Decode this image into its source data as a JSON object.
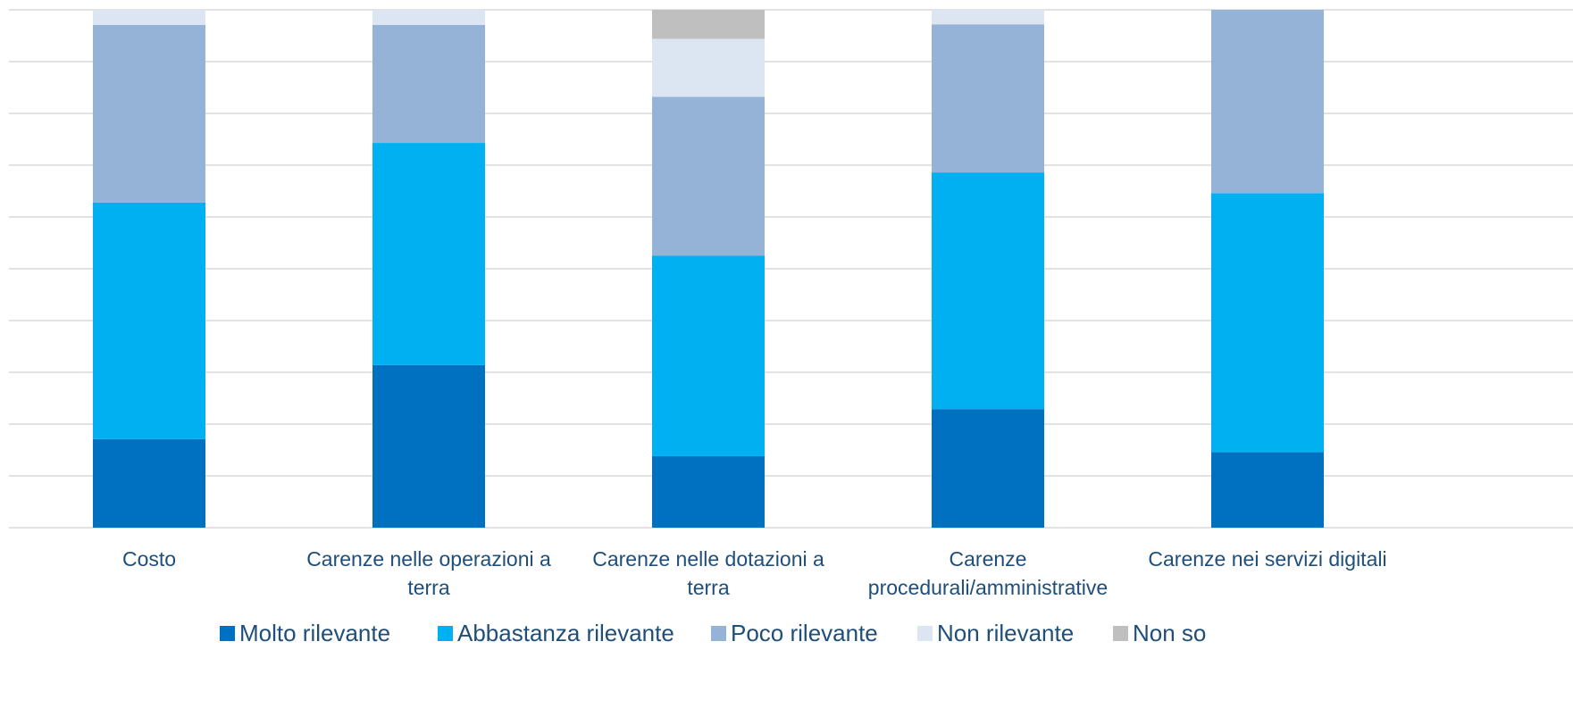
{
  "chart_data": {
    "type": "bar",
    "stacked": true,
    "categories": [
      "Costo",
      "Carenze nelle operazioni a terra",
      "Carenze nelle dotazioni a terra",
      "Carenze procedurali/amministrative",
      "Carenze nei servizi digitali"
    ],
    "category_lines": [
      [
        "Costo"
      ],
      [
        "Carenze nelle operazioni a",
        "terra"
      ],
      [
        "Carenze nelle dotazioni a",
        "terra"
      ],
      [
        "Carenze",
        "procedurali/amministrative"
      ],
      [
        "Carenze nei servizi digitali"
      ]
    ],
    "series": [
      {
        "name": "Molto rilevante",
        "color": "#0070c0",
        "values": [
          17.1,
          31.4,
          13.8,
          22.9,
          14.6
        ]
      },
      {
        "name": "Abbastanza rilevante",
        "color": "#00b0f0",
        "values": [
          45.7,
          42.9,
          38.7,
          45.7,
          50.0
        ]
      },
      {
        "name": "Poco rilevante",
        "color": "#95b3d7",
        "values": [
          34.3,
          22.8,
          30.7,
          28.6,
          35.4
        ]
      },
      {
        "name": "Non rilevante",
        "color": "#dce6f2",
        "values": [
          2.9,
          2.9,
          11.2,
          2.8,
          0
        ]
      },
      {
        "name": "Non so",
        "color": "#bfbfbf",
        "values": [
          0,
          0,
          5.6,
          0,
          0
        ]
      }
    ],
    "ylim": [
      0,
      100
    ],
    "y_gridlines": 10,
    "grid": true,
    "legend_position": "bottom",
    "title": "",
    "xlabel": "",
    "ylabel": ""
  }
}
